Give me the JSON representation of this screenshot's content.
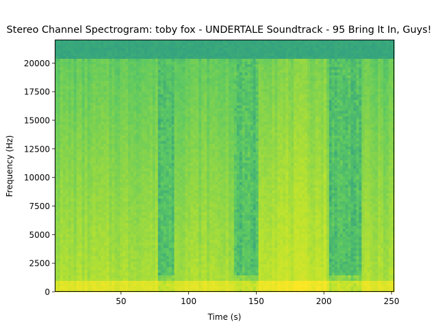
{
  "chart_data": {
    "type": "heatmap",
    "title": "Stereo Channel Spectrogram: toby fox - UNDERTALE Soundtrack - 95 Bring It In, Guys!",
    "xlabel": "Time (s)",
    "ylabel": "Frequency (Hz)",
    "xlim": [
      1,
      252
    ],
    "ylim": [
      0,
      22050
    ],
    "x_ticks": [
      50,
      100,
      150,
      200,
      250
    ],
    "y_ticks": [
      0,
      2500,
      5000,
      7500,
      10000,
      12500,
      15000,
      17500,
      20000
    ],
    "colormap": "viridis",
    "quiet_segments_s": [
      [
        77,
        90
      ],
      [
        134,
        152
      ],
      [
        203,
        228
      ]
    ],
    "bright_segments_s": [
      [
        152,
        202
      ]
    ],
    "colors": {
      "high_energy": "#bde32e",
      "mid_energy": "#5ec962",
      "low_energy": "#21918c",
      "background_top": "#27858e"
    }
  }
}
